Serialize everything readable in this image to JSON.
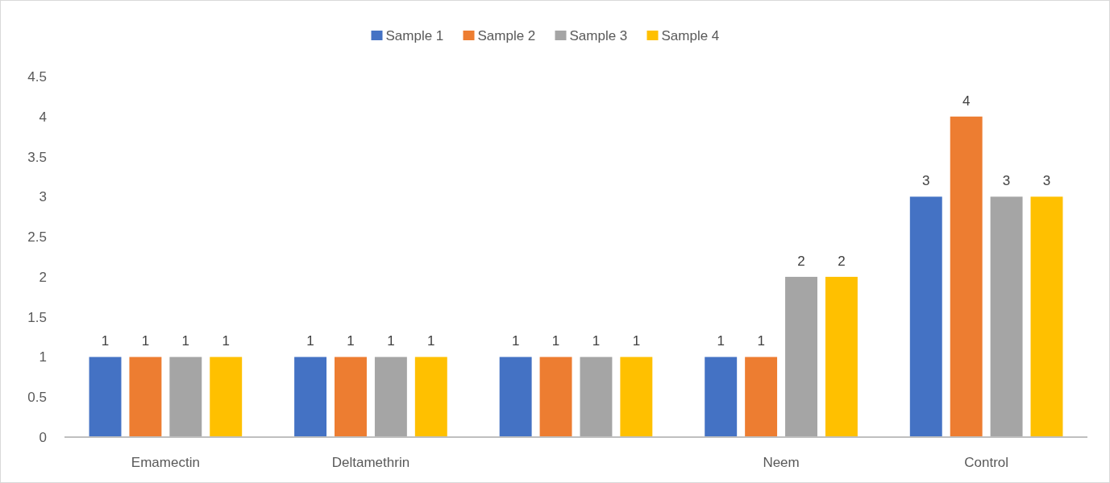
{
  "chart_data": {
    "type": "bar",
    "categories": [
      "Emamectin",
      "Deltamethrin",
      null,
      "Neem",
      "Control"
    ],
    "series": [
      {
        "name": "Sample 1",
        "color": "#4472c4",
        "values": [
          1,
          1,
          1,
          1,
          3
        ]
      },
      {
        "name": "Sample 2",
        "color": "#ed7d31",
        "values": [
          1,
          1,
          1,
          1,
          4
        ]
      },
      {
        "name": "Sample 3",
        "color": "#a5a5a5",
        "values": [
          1,
          1,
          1,
          2,
          3
        ]
      },
      {
        "name": "Sample 4",
        "color": "#ffc000",
        "values": [
          1,
          1,
          1,
          2,
          3
        ]
      }
    ],
    "ylim": [
      0,
      4.5
    ],
    "yticks": [
      0,
      0.5,
      1,
      1.5,
      2,
      2.5,
      3,
      3.5,
      4,
      4.5
    ],
    "grid": false,
    "legend": "top",
    "data_labels": true
  }
}
